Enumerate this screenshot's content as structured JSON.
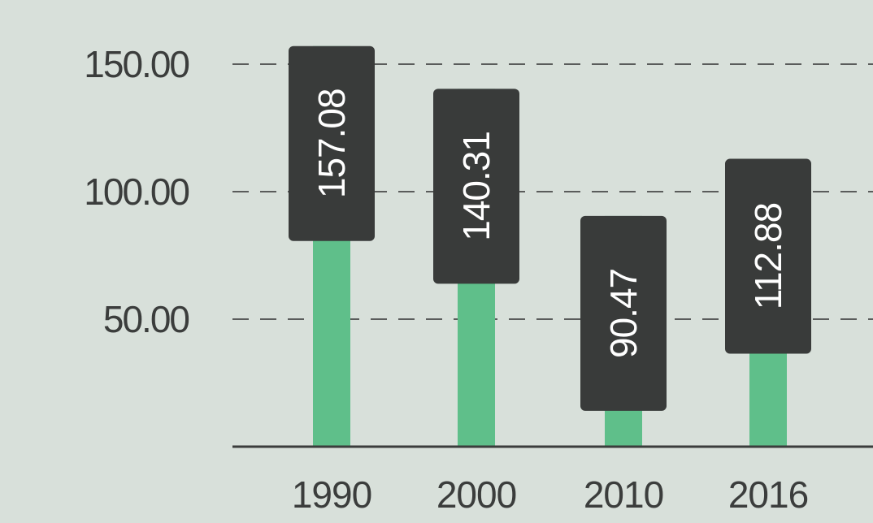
{
  "colors": {
    "background": "#d8e0da",
    "bar": "#5fbf8a",
    "label_box": "#393b3a",
    "label_text": "#ffffff",
    "axis_text": "#3b3d3c"
  },
  "chart_data": {
    "type": "bar",
    "title": "",
    "xlabel": "",
    "ylabel": "",
    "categories": [
      "1990",
      "2000",
      "2010",
      "2016"
    ],
    "values": [
      157.08,
      140.31,
      90.47,
      112.88
    ],
    "data_labels": [
      "157.08",
      "140.31",
      "90.47",
      "112.88"
    ],
    "y_ticks": [
      50,
      100,
      150
    ],
    "y_tick_labels": [
      "50.00",
      "100.00",
      "150.00"
    ],
    "ylim": [
      0,
      175
    ],
    "grid": true,
    "legend": "none"
  }
}
